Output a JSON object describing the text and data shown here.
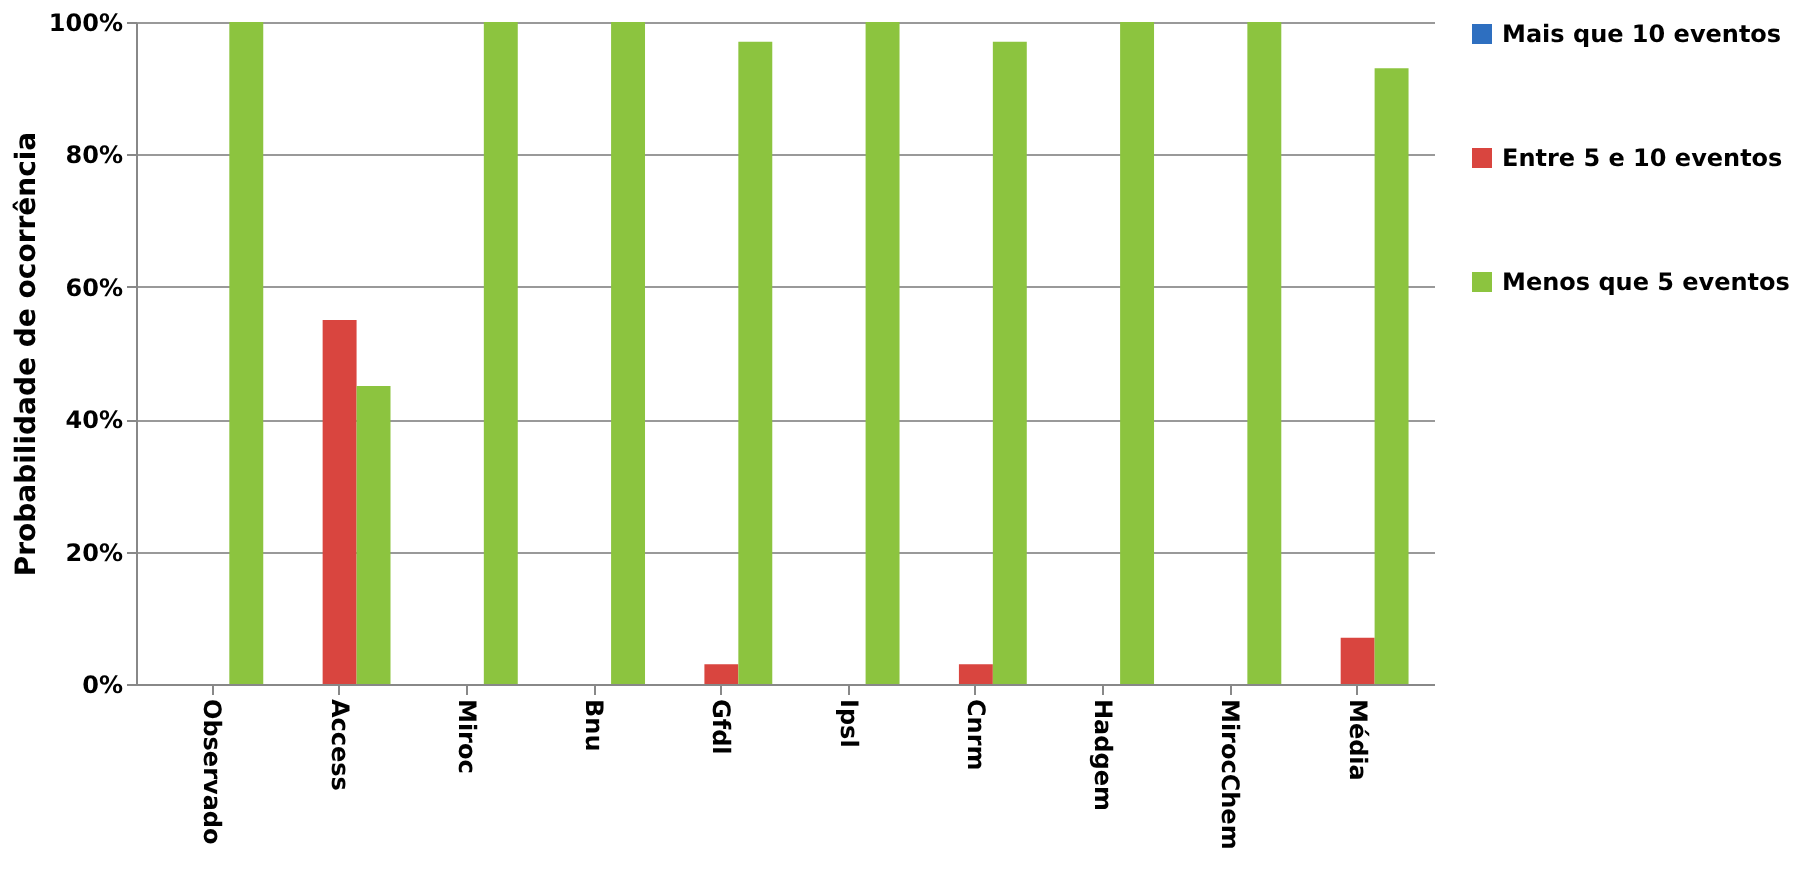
{
  "chart_data": {
    "type": "bar",
    "ylabel": "Probabilidade de ocorrência",
    "categories": [
      "Observado",
      "Access",
      "Miroc",
      "Bnu",
      "Gfdl",
      "Ipsl",
      "Cnrm",
      "Hadgem",
      "MirocChem",
      "Média"
    ],
    "series": [
      {
        "name": "Mais que 10 eventos",
        "color": "#2e6fc0",
        "values": [
          0,
          0,
          0,
          0,
          0,
          0,
          0,
          0,
          0,
          0
        ]
      },
      {
        "name": "Entre 5 e 10 eventos",
        "color": "#d9453f",
        "values": [
          0,
          55,
          0,
          0,
          3,
          0,
          3,
          0,
          0,
          7
        ]
      },
      {
        "name": "Menos que 5 eventos",
        "color": "#8cc43f",
        "values": [
          100,
          45,
          100,
          100,
          97,
          100,
          97,
          100,
          100,
          93
        ]
      }
    ],
    "ylim": [
      0,
      100
    ],
    "yticks": [
      {
        "value": 0,
        "label": "0%"
      },
      {
        "value": 20,
        "label": "20%"
      },
      {
        "value": 40,
        "label": "40%"
      },
      {
        "value": 60,
        "label": "60%"
      },
      {
        "value": 80,
        "label": "80%"
      },
      {
        "value": 100,
        "label": "100%"
      }
    ],
    "grid": "y",
    "legend": "right"
  }
}
